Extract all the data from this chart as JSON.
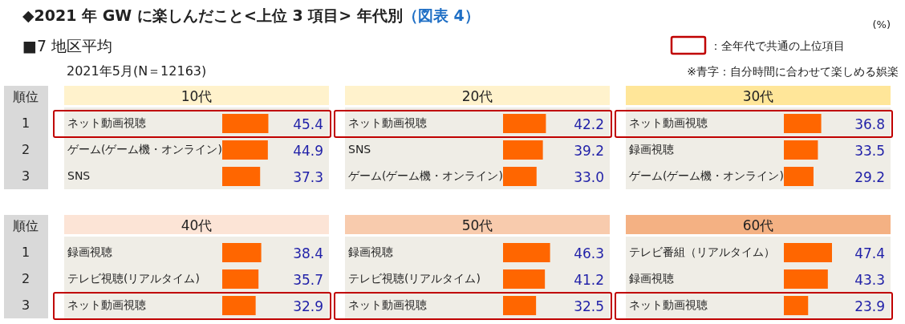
{
  "chart_data": [
    {
      "type": "bar",
      "orientation": "horizontal",
      "title": "10代",
      "categories": [
        "ネット動画視聴",
        "ゲーム(ゲーム機・オンライン)",
        "SNS"
      ],
      "values": [
        45.4,
        44.9,
        37.3
      ],
      "color": "#ff6600",
      "data_labels": true,
      "annotations": [
        "◆2021 年 GW に楽しんだこと<上位 3 項目> 年代別",
        "（図表 4）",
        "(%)",
        "■7 地区平均",
        "2021年5月(N＝12163)",
        "：全年代で共通の上位項目",
        "※青字：自分時間に合わせて楽しめる娯楽",
        "順位",
        "1",
        "2",
        "3"
      ]
    },
    {
      "type": "bar",
      "orientation": "horizontal",
      "title": "20代",
      "categories": [
        "ネット動画視聴",
        "SNS",
        "ゲーム(ゲーム機・オンライン)"
      ],
      "values": [
        42.2,
        39.2,
        33.0
      ],
      "value_labels": [
        "42.2",
        "39.2",
        "33.0"
      ],
      "color": "#ff6600"
    },
    {
      "type": "bar",
      "orientation": "horizontal",
      "title": "30代",
      "categories": [
        "ネット動画視聴",
        "録画視聴",
        "ゲーム(ゲーム機・オンライン)"
      ],
      "values": [
        36.8,
        33.5,
        29.2
      ],
      "color": "#ff6600",
      "data_labels": true
    },
    {
      "type": "bar",
      "orientation": "horizontal",
      "title": "40代",
      "categories": [
        "録画視聴",
        "テレビ視聴(リアルタイム)",
        "ネット動画視聴"
      ],
      "values": [
        38.4,
        35.7,
        32.9
      ],
      "color": "#ff6600",
      "data_labels": true,
      "annotations": [
        "順位",
        "1",
        "2",
        "3"
      ]
    },
    {
      "type": "bar",
      "orientation": "horizontal",
      "title": "50代",
      "categories": [
        "録画視聴",
        "テレビ視聴(リアルタイム)",
        "ネット動画視聴"
      ],
      "values": [
        46.3,
        41.2,
        32.5
      ],
      "color": "#ff6600",
      "data_labels": true
    },
    {
      "type": "bar",
      "orientation": "horizontal",
      "title": "60代",
      "categories": [
        "テレビ番組（リアルタイム）",
        "録画視聴",
        "ネット動画視聴"
      ],
      "values": [
        47.4,
        43.3,
        23.9
      ],
      "color": "#ff6600",
      "data_labels": true
    }
  ]
}
